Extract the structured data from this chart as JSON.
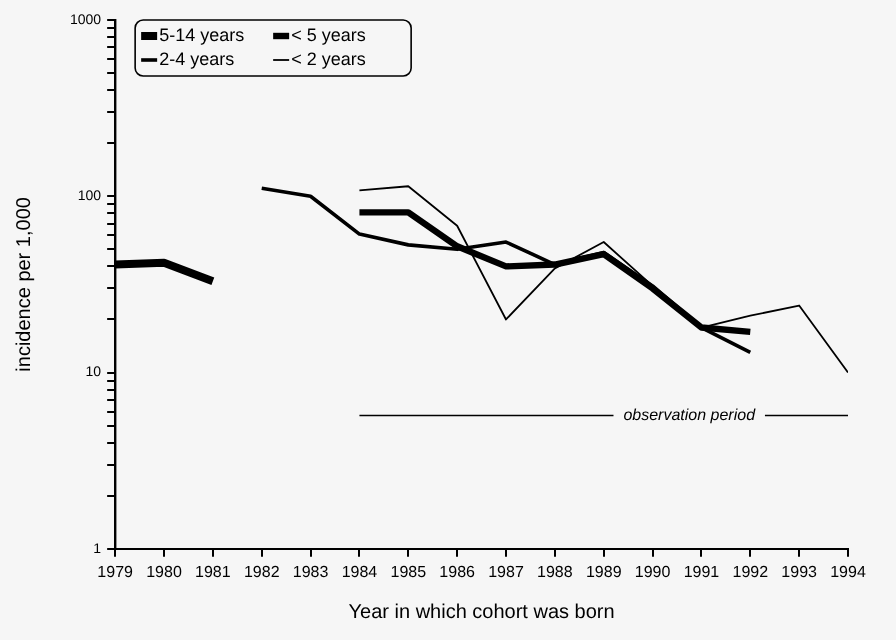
{
  "chart_data": {
    "type": "line",
    "xlabel": "Year in which cohort was born",
    "ylabel": "incidence per 1,000",
    "log": "y",
    "xlim": [
      1979,
      1994
    ],
    "xticks": [
      1979,
      1980,
      1981,
      1982,
      1983,
      1984,
      1985,
      1986,
      1987,
      1988,
      1989,
      1990,
      1991,
      1992,
      1993,
      1994
    ],
    "ylim": [
      1,
      1000
    ],
    "yticks": [
      1,
      {
        "value": 2,
        "label": null
      },
      {
        "value": 3,
        "label": null
      },
      {
        "value": 4,
        "label": null
      },
      {
        "value": 5,
        "label": null
      },
      {
        "value": 6,
        "label": null
      },
      {
        "value": 7,
        "label": null
      },
      {
        "value": 8,
        "label": null
      },
      {
        "value": 9,
        "label": null
      },
      10,
      {
        "value": 20,
        "label": null
      },
      {
        "value": 30,
        "label": null
      },
      {
        "value": 40,
        "label": null
      },
      {
        "value": 50,
        "label": null
      },
      {
        "value": 60,
        "label": null
      },
      {
        "value": 70,
        "label": null
      },
      {
        "value": 80,
        "label": null
      },
      {
        "value": 90,
        "label": null
      },
      100,
      {
        "value": 200,
        "label": null
      },
      {
        "value": 300,
        "label": null
      },
      {
        "value": 400,
        "label": null
      },
      {
        "value": 500,
        "label": null
      },
      {
        "value": 600,
        "label": null
      },
      {
        "value": 700,
        "label": null
      },
      {
        "value": 800,
        "label": null
      },
      {
        "value": 900,
        "label": null
      },
      1000
    ],
    "grid": false,
    "legend": "top left",
    "marker": "none",
    "series": [
      {
        "name": "5-14 years",
        "color": "#000000",
        "x": [
          1979,
          1980,
          1981
        ],
        "values": [
          41,
          42,
          33
        ]
      },
      {
        "name": "< 5 years",
        "color": "#000000",
        "x": [
          1984,
          1985,
          1986,
          1987,
          1988,
          1989,
          1990,
          1991,
          1992
        ],
        "values": [
          81,
          81,
          52,
          40,
          41,
          47,
          30,
          18,
          17
        ]
      },
      {
        "name": "2-4 years",
        "color": "#000000",
        "x": [
          1982,
          1983,
          1984,
          1985,
          1986,
          1987,
          1988,
          1989,
          1990,
          1991,
          1992
        ],
        "values": [
          111,
          100,
          61,
          53,
          50,
          55,
          41,
          48,
          31,
          18,
          13
        ]
      },
      {
        "name": "< 2 years",
        "color": "#000000",
        "x": [
          1984,
          1985,
          1986,
          1987,
          1988,
          1989,
          1990,
          1991,
          1992,
          1993,
          1994
        ],
        "values": [
          108,
          114,
          68,
          20,
          39,
          55,
          31,
          18,
          21,
          24,
          10
        ]
      },
      {
        "color": "#000000",
        "x": [
          1984,
          1989.2,
          1990.75,
          1992.3,
          1994
        ],
        "values": [
          5.7,
          5.7,
          null,
          5.7,
          5.7
        ]
      }
    ],
    "annotations": [
      "observation period"
    ]
  }
}
